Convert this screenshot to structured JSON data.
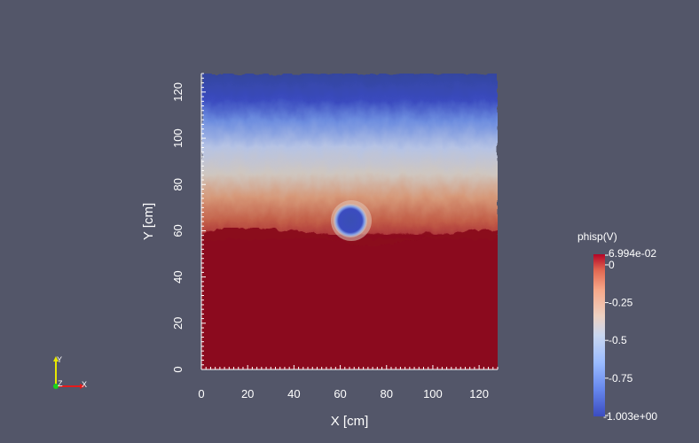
{
  "plot": {
    "x_axis_title": "X [cm]",
    "y_axis_title": "Y [cm]",
    "x_ticks": [
      "0",
      "20",
      "40",
      "60",
      "80",
      "100",
      "120"
    ],
    "y_ticks": [
      "0",
      "20",
      "40",
      "60",
      "80",
      "100",
      "120"
    ],
    "x_range": [
      0,
      128
    ],
    "y_range": [
      0,
      128
    ],
    "field": {
      "upper_color": "#3b4cc0",
      "mid_color": "#dddddd",
      "lower_color": "#8b0a1e",
      "boundary_y": 60,
      "sphere_center": [
        64,
        64
      ],
      "sphere_radius": 7
    }
  },
  "colorbar": {
    "title": "phisp(V)",
    "max_label": "6.994e-02",
    "min_label": "-1.003e+00",
    "tick_labels": [
      "0",
      "-0.25",
      "-0.5",
      "-0.75"
    ],
    "tick_values": [
      0,
      -0.25,
      -0.5,
      -0.75
    ],
    "range": [
      -1.003,
      0.06994
    ],
    "colors": [
      "#3b4cc0",
      "#7b9ff9",
      "#c0d4f5",
      "#dddddd",
      "#f2cbb7",
      "#ee8468",
      "#b40426"
    ]
  },
  "orientation_axes": {
    "y_label": "Y",
    "z_label": "Z",
    "x_label": "X",
    "x_color": "#ff0000",
    "y_color": "#ffff00",
    "z_color": "#00ff00"
  }
}
